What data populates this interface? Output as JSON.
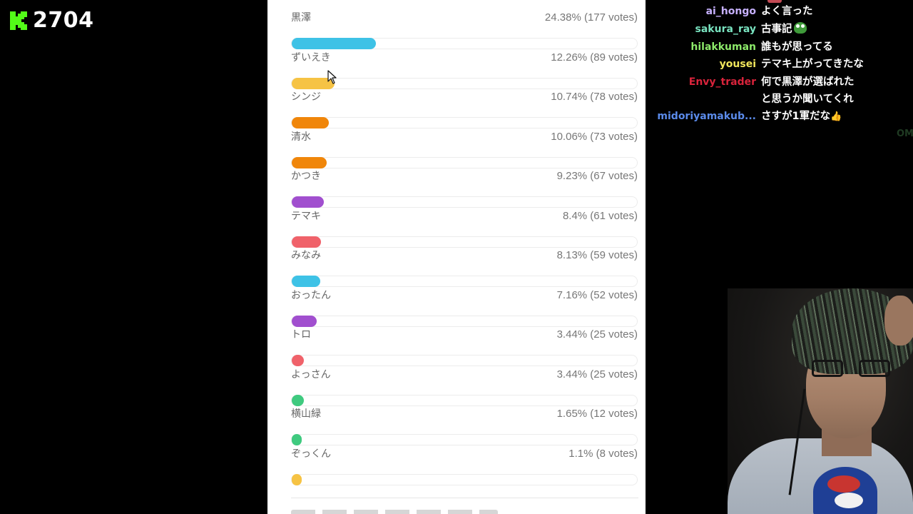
{
  "stream": {
    "viewer_count": "2704",
    "logo_icon": "kick-logo-icon",
    "brand_color": "#53fc18"
  },
  "poll": {
    "options": [
      {
        "label": "黒澤",
        "result": "24.38% (177 votes)",
        "percent": 24.38,
        "color": "#3ec2e6"
      },
      {
        "label": "ずいえき",
        "result": "12.26% (89 votes)",
        "percent": 12.26,
        "color": "#f6c344"
      },
      {
        "label": "シンジ",
        "result": "10.74% (78 votes)",
        "percent": 10.74,
        "color": "#f0860a"
      },
      {
        "label": "清水",
        "result": "10.06% (73 votes)",
        "percent": 10.06,
        "color": "#f0860a"
      },
      {
        "label": "かつき",
        "result": "9.23% (67 votes)",
        "percent": 9.23,
        "color": "#a14fcf"
      },
      {
        "label": "テマキ",
        "result": "8.4% (61 votes)",
        "percent": 8.4,
        "color": "#f0626a"
      },
      {
        "label": "みなみ",
        "result": "8.13% (59 votes)",
        "percent": 8.13,
        "color": "#3ec2e6"
      },
      {
        "label": "おったん",
        "result": "7.16% (52 votes)",
        "percent": 7.16,
        "color": "#a14fcf"
      },
      {
        "label": "トロ",
        "result": "3.44% (25 votes)",
        "percent": 3.44,
        "color": "#f0626a"
      },
      {
        "label": "よっさん",
        "result": "3.44% (25 votes)",
        "percent": 3.44,
        "color": "#3fca7f"
      },
      {
        "label": "横山緑",
        "result": "1.65% (12 votes)",
        "percent": 1.65,
        "color": "#3fca7f"
      },
      {
        "label": "ぞっくん",
        "result": "1.1% (8 votes)",
        "percent": 1.1,
        "color": "#f6c344"
      }
    ]
  },
  "chat": {
    "messages": [
      {
        "user": "ai_hongo",
        "color": "#c7b1ff",
        "text": "よく言った"
      },
      {
        "user": "sakura_ray",
        "color": "#79e3c0",
        "text": "古事記",
        "emote": "pepe-emote-icon"
      },
      {
        "user": "hilakkuman",
        "color": "#8dea6a",
        "text": "誰もが思ってる"
      },
      {
        "user": "yousei",
        "color": "#f1e65c",
        "text": "テマキ上がってきたな"
      },
      {
        "user": "Envy_trader",
        "color": "#d9233b",
        "text": "何で黒澤が選ばれたと思うか聞いてくれ"
      },
      {
        "user": "midoriyamakub...",
        "color": "#5b8bea",
        "text": "さすが1軍だな",
        "emote": "thumbs-up-icon"
      }
    ],
    "faded_text": "OM"
  }
}
